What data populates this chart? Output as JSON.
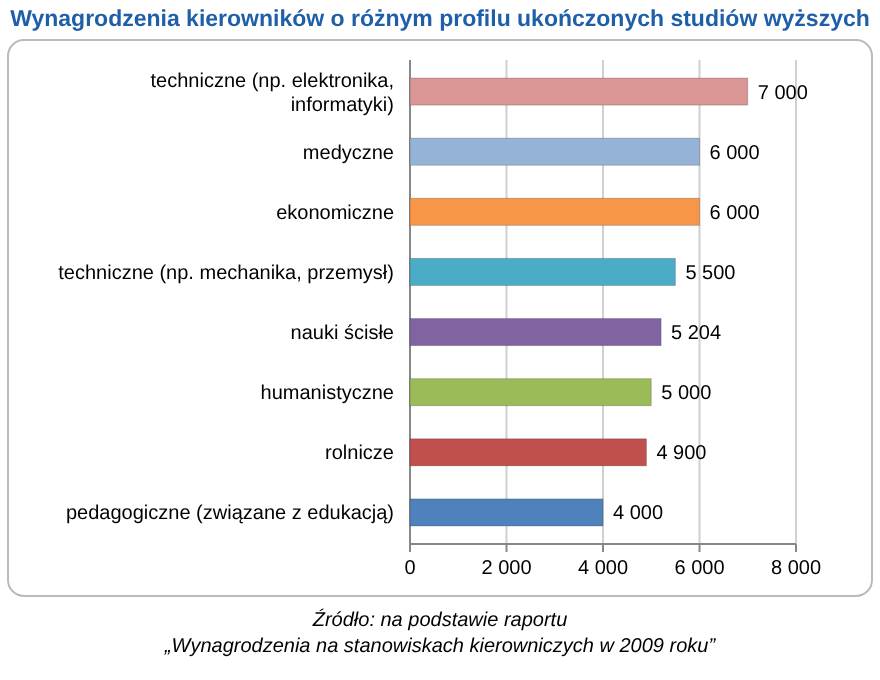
{
  "chart_data": {
    "type": "bar",
    "orientation": "horizontal",
    "title": "Wynagrodzenia kierowników o różnym profilu ukończonych studiów wyższych",
    "categories": [
      "techniczne (np. elektronika, informatyki)",
      "medyczne",
      "ekonomiczne",
      "techniczne (np. mechanika, przemysł)",
      "nauki ścisłe",
      "humanistyczne",
      "rolnicze",
      "pedagogiczne (związane z edukacją)"
    ],
    "values": [
      7000,
      6000,
      6000,
      5500,
      5204,
      5000,
      4900,
      4000
    ],
    "colors": [
      "#d99694",
      "#95b3d7",
      "#f79646",
      "#4bacc6",
      "#8064a2",
      "#9bbb59",
      "#c0504d",
      "#4f81bd"
    ],
    "value_labels": [
      "7 000",
      "6 000",
      "6 000",
      "5 500",
      "5 204",
      "5 000",
      "4 900",
      "4 000"
    ],
    "xlim": [
      0,
      8000
    ],
    "xticks": [
      0,
      {
        "value": 2000,
        "label": "2 000"
      },
      {
        "value": 4000,
        "label": "4 000"
      },
      {
        "value": 6000,
        "label": "6 000"
      },
      {
        "value": 8000,
        "label": "8 000"
      }
    ],
    "grid": "x",
    "annotations": [
      "Źródło: na podstawie raportu",
      "„Wynagrodzenia na stanowiskach kierowniczych  w 2009 roku”"
    ]
  }
}
